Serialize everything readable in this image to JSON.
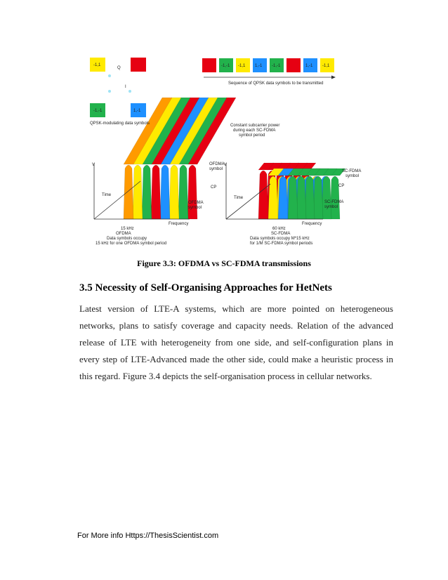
{
  "figure": {
    "constellation": {
      "box_labels": [
        "-1,1",
        "-1,-1",
        "1,-1"
      ],
      "q_label": "Q",
      "i_label": "I",
      "caption": "QPSK-modulating data symbols"
    },
    "sequence": {
      "box_labels": [
        "-1,-1",
        "-1,1",
        "1,-1",
        "-1,-1",
        "1,-1",
        "-1,1"
      ],
      "caption": "Sequence of QPSK data symbols to be transmitted"
    },
    "ofdma": {
      "v_axis": "V",
      "time_axis": "Time",
      "frequency_axis": "Frequency",
      "symbol_top": [
        "OFDMA",
        "symbol"
      ],
      "cp": "CP",
      "symbol_bottom": [
        "OFDMA",
        "symbol"
      ],
      "bandwidth": "15 kHz",
      "notes": [
        "OFDMA",
        "Data symbols occupy",
        "15 kHz for one OFDMA symbol period"
      ]
    },
    "scfdma": {
      "power_note": [
        "Constant subcarrier power",
        "during each SC-FDMA",
        "symbol period"
      ],
      "v_axis": "V",
      "time_axis": "Time",
      "frequency_axis": "Frequency",
      "symbol_top": [
        "SC-FDMA",
        "symbol"
      ],
      "cp": "CP",
      "symbol_bottom": [
        "SC-FDMA",
        "symbol"
      ],
      "bandwidth": "60 kHz",
      "notes": [
        "SC-FDMA",
        "Data symbols occupy M*15 kHz",
        "for 1/M SC-FDMA symbol periods"
      ]
    },
    "caption": "Figure 3.3: OFDMA vs SC-FDMA transmissions"
  },
  "section": {
    "heading": "3.5 Necessity of Self-Organising Approaches for HetNets",
    "paragraph": "Latest version of LTE-A systems, which are more pointed on heterogeneous networks, plans to satisfy coverage and capacity needs. Relation of the advanced release of LTE with heterogeneity from one side, and self-configuration plans in every step of LTE-Advanced made the other side, could make a heuristic process in this regard. Figure 3.4 depicts the self-organisation process in cellular networks."
  },
  "footer": "For More info Https://ThesisScientist.com"
}
